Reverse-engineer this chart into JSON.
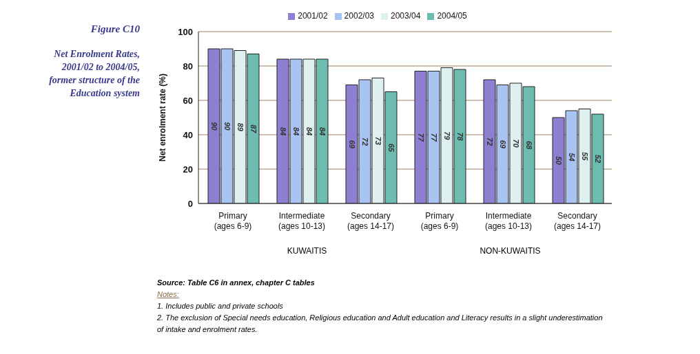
{
  "chart_data": {
    "type": "bar",
    "title": "Figure C10",
    "subtitle": "Net Enrolment Rates, 2001/02 to 2004/05, former structure of the Education system",
    "ylabel": "Net enrolment rate (%)",
    "categories": [
      "Primary (ages 6-9)",
      "Intermediate (ages 10-13)",
      "Secondary (ages 14-17)",
      "Primary (ages 6-9)",
      "Intermediate (ages 10-13)",
      "Secondary (ages 14-17)"
    ],
    "series": [
      {
        "name": "2001/02",
        "color": "#8f7fd0",
        "values": [
          90,
          84,
          69,
          77,
          72,
          50
        ]
      },
      {
        "name": "2002/03",
        "color": "#a9c4f3",
        "values": [
          90,
          84,
          72,
          77,
          69,
          54
        ]
      },
      {
        "name": "2003/04",
        "color": "#dff0f0",
        "values": [
          89,
          84,
          73,
          79,
          70,
          55
        ]
      },
      {
        "name": "2004/05",
        "color": "#6cbcb0",
        "values": [
          87,
          84,
          65,
          78,
          68,
          52
        ]
      }
    ],
    "ylim": [
      0,
      100
    ],
    "yticks": [
      0,
      20,
      40,
      60,
      80,
      100
    ],
    "grid": "y",
    "legend": "top",
    "data_labels": true,
    "annotations": [
      "KUWAITIS",
      "NON-KUWAITIS",
      "Source: Table C6 in annex, chapter C tables",
      "Notes:",
      "1. Includes public and private schools",
      "2. The exclusion of Special needs education, Religious education and Adult education and Literacy results in a slight underestimation of intake and enrolment rates."
    ]
  }
}
